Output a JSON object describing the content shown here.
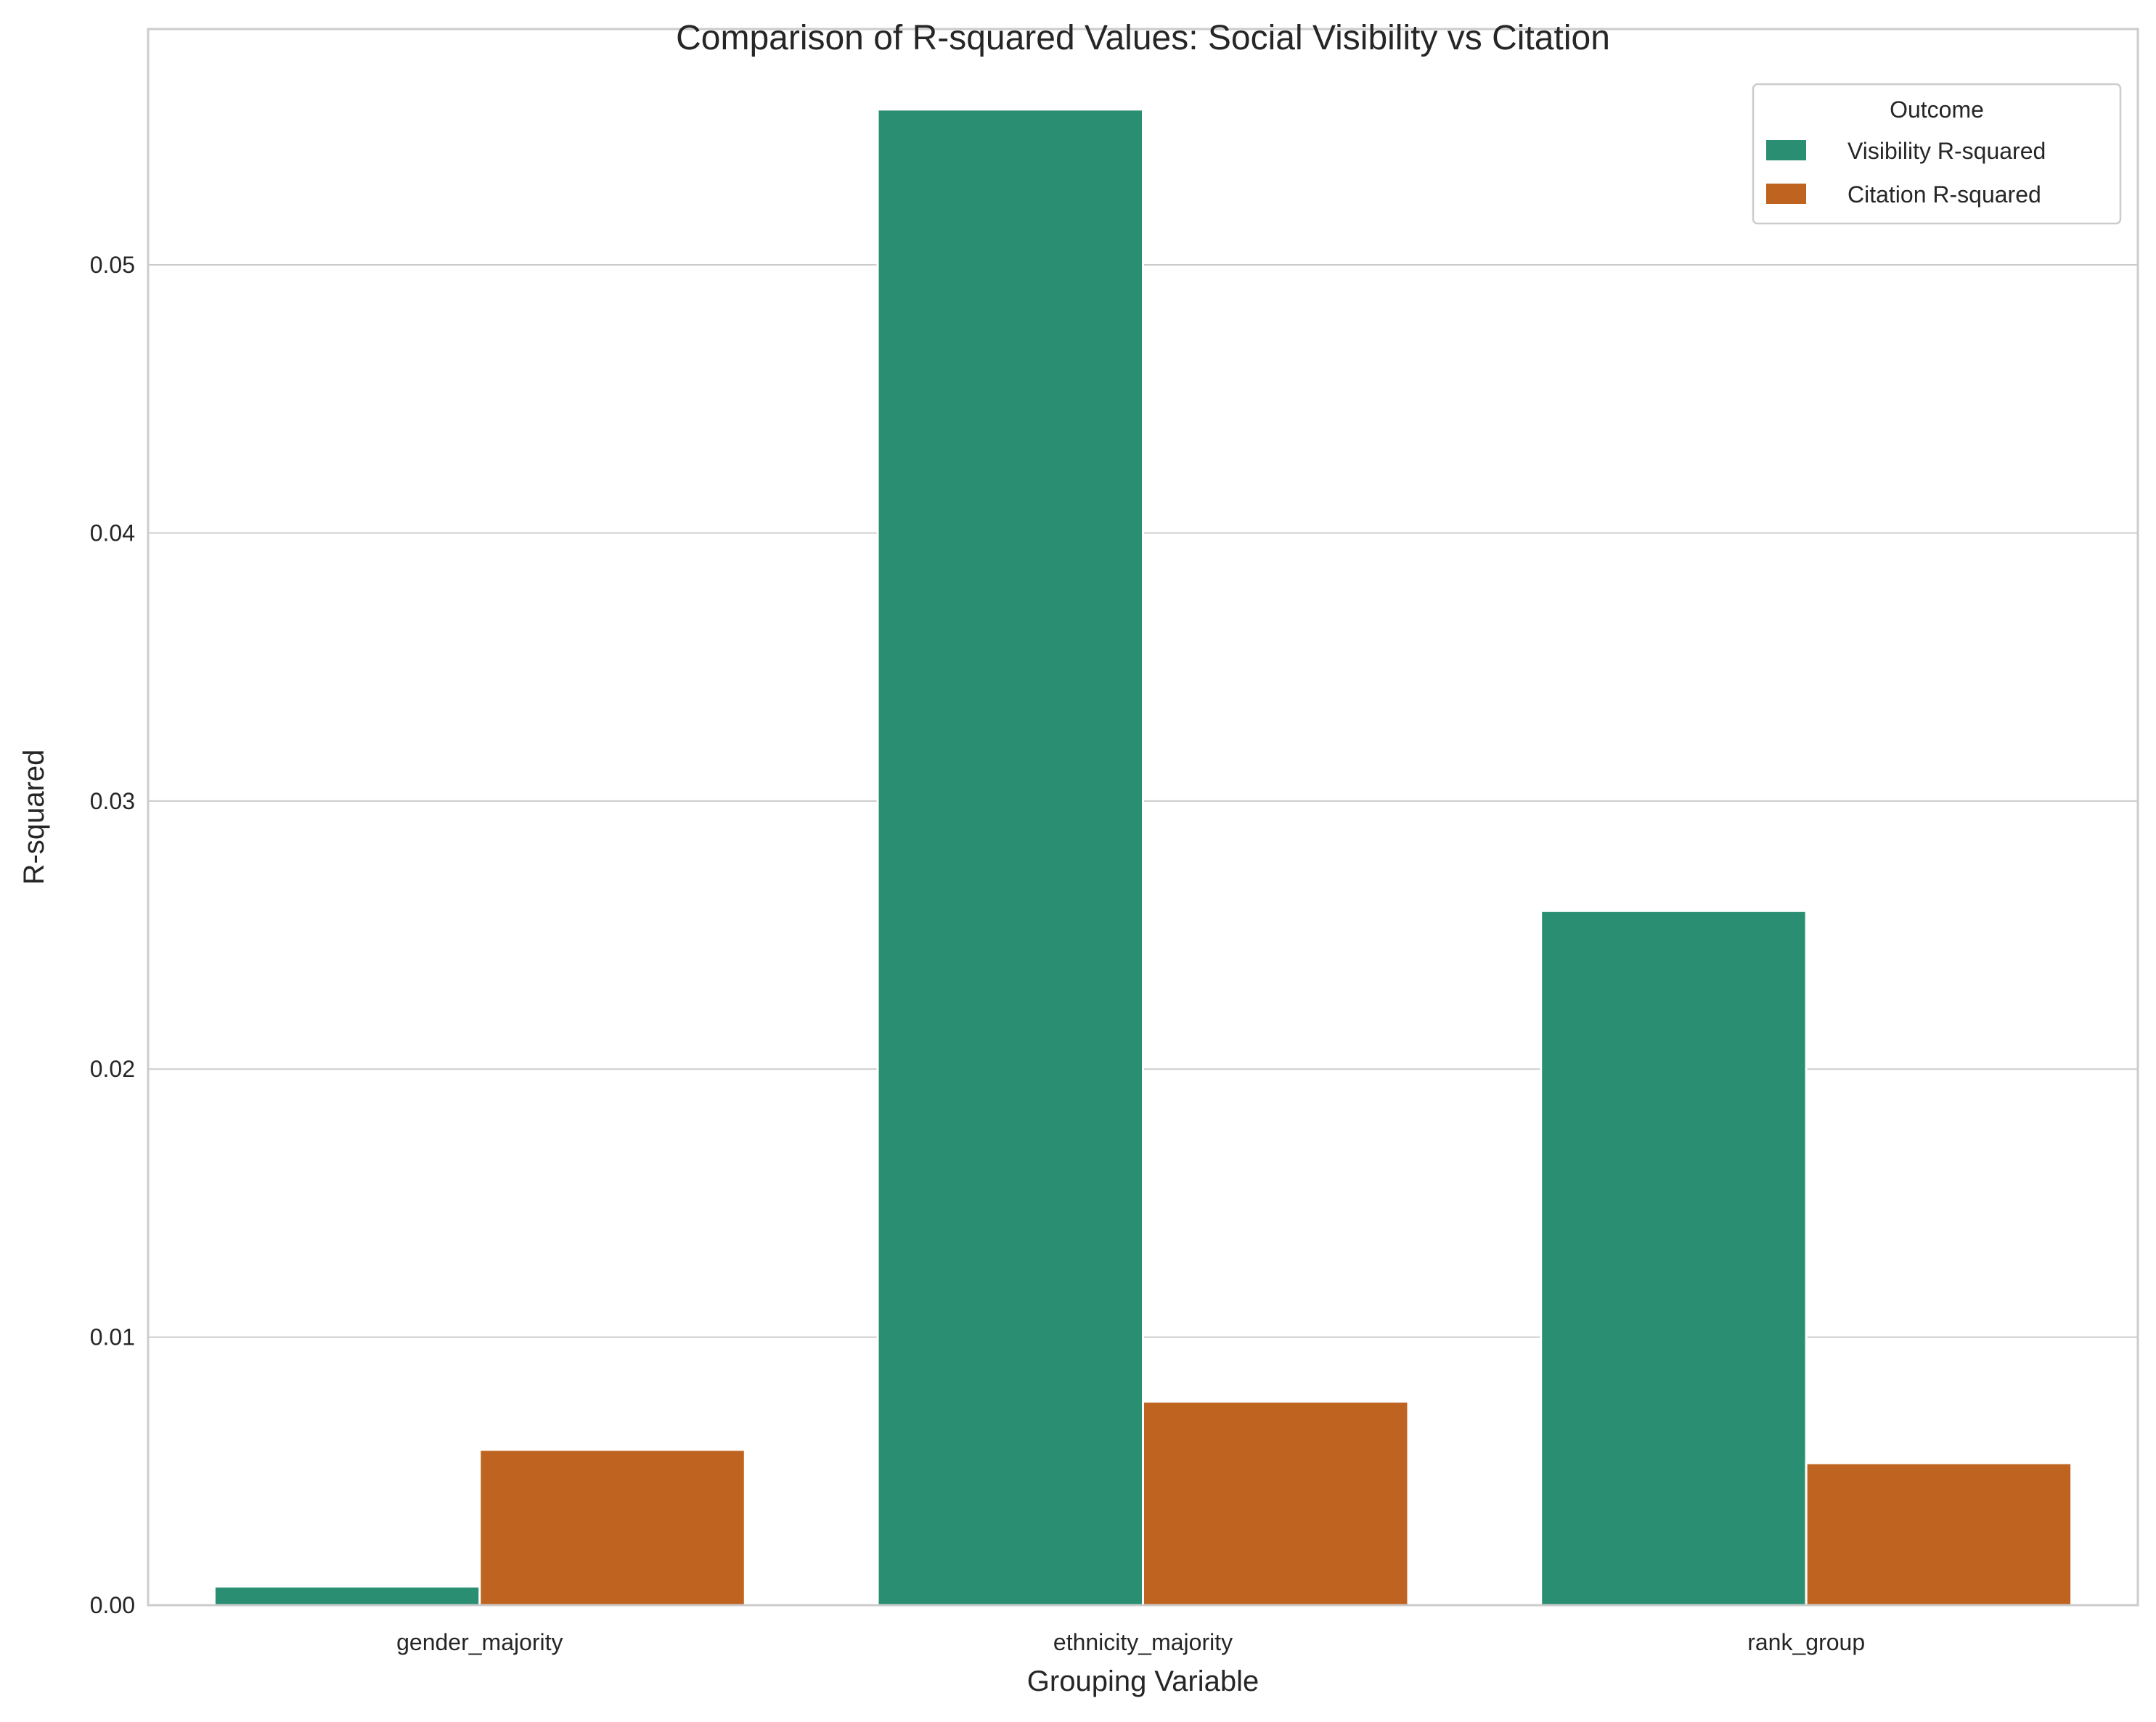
{
  "chart_data": {
    "type": "bar",
    "title": "Comparison of R-squared Values: Social Visibility vs Citation",
    "xlabel": "Grouping Variable",
    "ylabel": "R-squared",
    "categories": [
      "gender_majority",
      "ethnicity_majority",
      "rank_group"
    ],
    "series": [
      {
        "name": "Visibility R-squared",
        "color": "#2a8f72",
        "values": [
          0.0007,
          0.0558,
          0.0259
        ]
      },
      {
        "name": "Citation R-squared",
        "color": "#bf6420",
        "values": [
          0.0058,
          0.0076,
          0.0053
        ]
      }
    ],
    "ylim": [
      0,
      0.0588
    ],
    "yticks": [
      "0.00",
      "0.01",
      "0.02",
      "0.03",
      "0.04",
      "0.05"
    ],
    "grid": true,
    "legend": {
      "title": "Outcome",
      "position": "top-right"
    }
  }
}
